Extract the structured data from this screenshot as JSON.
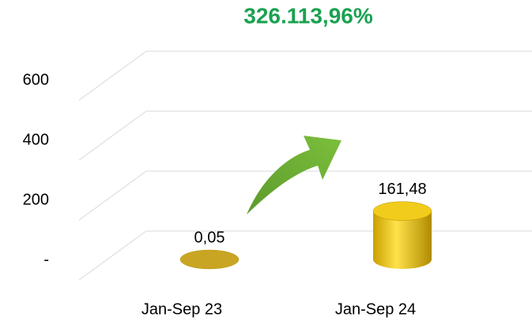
{
  "chart_data": {
    "type": "bar",
    "annotation": "326.113,96%",
    "categories": [
      "Jan-Sep 23",
      "Jan-Sep 24"
    ],
    "values": [
      0.05,
      161.48
    ],
    "value_labels": [
      "0,05",
      "161,48"
    ],
    "colors": [
      "#c9a524",
      "#f2cc1b"
    ],
    "ylim": [
      0,
      700
    ],
    "yticks": [
      {
        "value": 0,
        "label": "-"
      },
      200,
      400,
      600
    ],
    "grid": true
  }
}
